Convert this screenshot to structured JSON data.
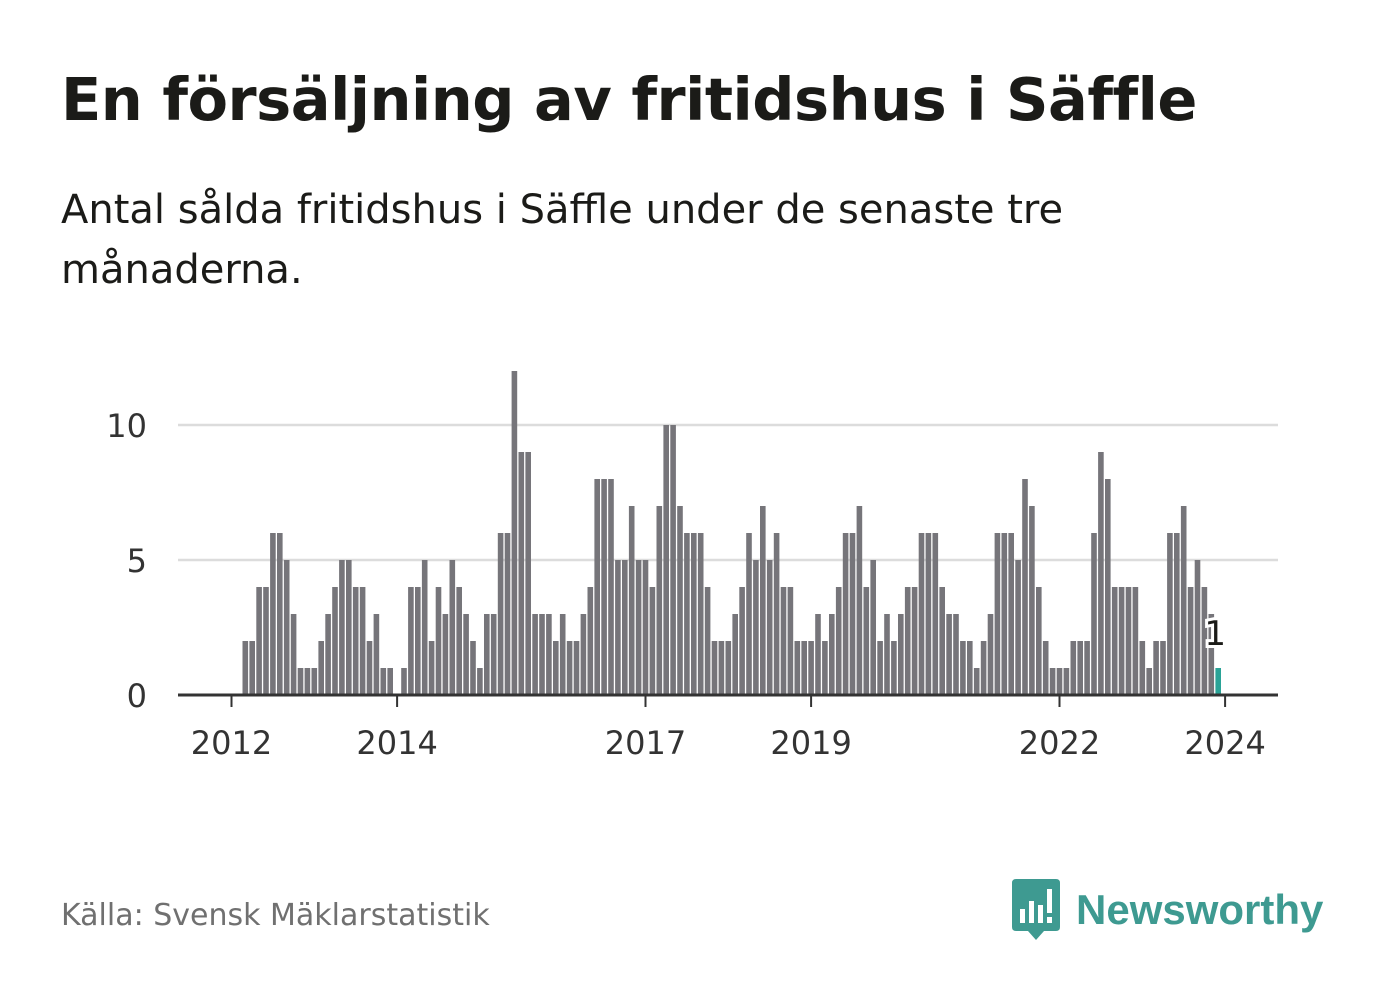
{
  "header": {
    "title": "En försäljning av fritidshus i Säffle",
    "subtitle": "Antal sålda fritidshus i Säffle under de senaste tre månaderna."
  },
  "footer": {
    "source": "Källa: Svensk Mäklarstatistik",
    "brand": "Newsworthy",
    "brand_icon": "newsworthy-logo-icon"
  },
  "colors": {
    "bar": "#76757a",
    "highlight": "#2aa397",
    "grid": "#dcdcdc",
    "axis": "#333333",
    "text": "#333333",
    "brand": "#3e9a91"
  },
  "chart_data": {
    "type": "bar",
    "title": "En försäljning av fritidshus i Säffle",
    "xlabel": "",
    "ylabel": "",
    "ylim": [
      0,
      12
    ],
    "yticks": [
      0,
      5,
      10
    ],
    "xticks": [
      {
        "label": "2012",
        "index": 0
      },
      {
        "label": "2014",
        "index": 24
      },
      {
        "label": "2017",
        "index": 60
      },
      {
        "label": "2019",
        "index": 84
      },
      {
        "label": "2022",
        "index": 120
      },
      {
        "label": "2024",
        "index": 144
      }
    ],
    "first_period": "2012-01",
    "values": [
      null,
      null,
      2,
      2,
      4,
      4,
      6,
      6,
      5,
      3,
      1,
      1,
      1,
      2,
      3,
      4,
      5,
      5,
      4,
      4,
      2,
      3,
      1,
      1,
      0,
      1,
      4,
      4,
      5,
      2,
      4,
      3,
      5,
      4,
      3,
      2,
      1,
      3,
      3,
      6,
      6,
      12,
      9,
      9,
      3,
      3,
      3,
      2,
      3,
      2,
      2,
      3,
      4,
      8,
      8,
      8,
      5,
      5,
      7,
      5,
      5,
      4,
      7,
      10,
      10,
      7,
      6,
      6,
      6,
      4,
      2,
      2,
      2,
      3,
      4,
      6,
      5,
      7,
      5,
      6,
      4,
      4,
      2,
      2,
      2,
      3,
      2,
      3,
      4,
      6,
      6,
      7,
      4,
      5,
      2,
      3,
      2,
      3,
      4,
      4,
      6,
      6,
      6,
      4,
      3,
      3,
      2,
      2,
      1,
      2,
      3,
      6,
      6,
      6,
      5,
      8,
      7,
      4,
      2,
      1,
      1,
      1,
      2,
      2,
      2,
      6,
      9,
      8,
      4,
      4,
      4,
      4,
      2,
      1,
      2,
      2,
      6,
      6,
      7,
      4,
      5,
      4,
      3,
      1
    ],
    "highlight_label": "1"
  }
}
